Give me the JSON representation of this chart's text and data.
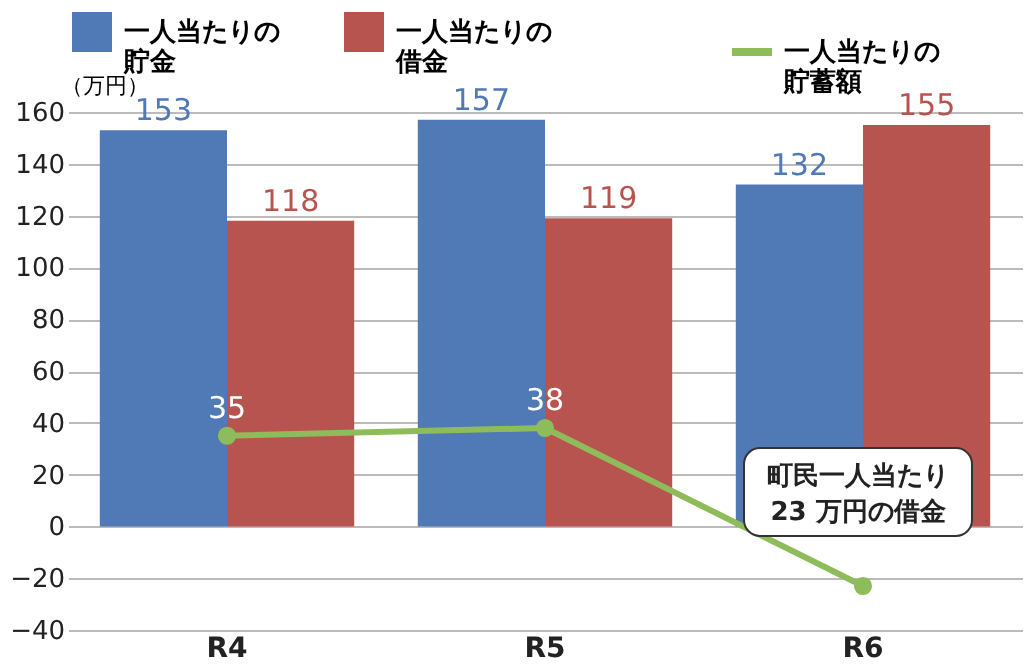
{
  "chart_data": {
    "type": "bar",
    "ylabel": "（万円）",
    "categories": [
      "R4",
      "R5",
      "R6"
    ],
    "series": [
      {
        "name": "一人当たりの貯金",
        "color": "#4f7ab5",
        "values": [
          153,
          157,
          132
        ]
      },
      {
        "name": "一人当たりの借金",
        "color": "#b85450",
        "values": [
          118,
          119,
          155
        ]
      },
      {
        "name": "一人当たりの貯蓄額",
        "type": "line",
        "color": "#8fbc5a",
        "values": [
          35,
          38,
          -23
        ],
        "value_labels": [
          "35",
          "38",
          null
        ],
        "marker": "circle"
      }
    ],
    "data_labels": true,
    "ylim": [
      -40,
      160
    ],
    "yticks": [
      -40,
      -20,
      0,
      20,
      40,
      60,
      80,
      100,
      120,
      140,
      160
    ],
    "grid": "y",
    "legend": "top",
    "annotations": [
      "町民一人当たり\n23 万円の借金"
    ]
  }
}
